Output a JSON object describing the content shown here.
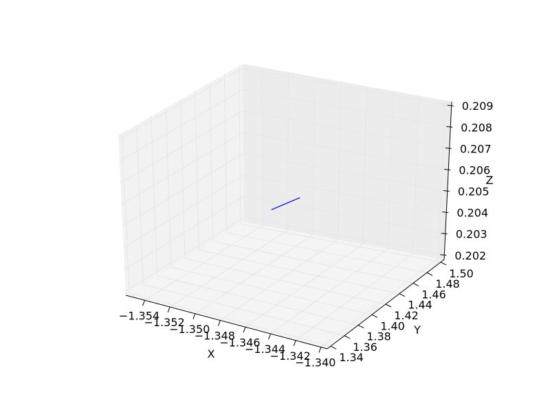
{
  "chart_data": {
    "type": "line",
    "projection": "3d",
    "grid": true,
    "colors": {
      "series": "#0000ff",
      "pane_back": "#ececec",
      "pane_side": "#f2f2f2",
      "pane_floor": "#f4f4f4",
      "grid": "#e6e6e6"
    },
    "xlabel": "X",
    "ylabel": "Y",
    "zlabel": "Z",
    "xlim": [
      -1.3555,
      -1.3395
    ],
    "ylim": [
      1.335,
      1.505
    ],
    "zlim": [
      0.2018,
      0.2092
    ],
    "xticks": [
      -1.354,
      -1.352,
      -1.35,
      -1.348,
      -1.346,
      -1.344,
      -1.342,
      -1.34
    ],
    "xtick_labels": [
      "−1.354",
      "−1.352",
      "−1.350",
      "−1.348",
      "−1.346",
      "−1.344",
      "−1.342",
      "−1.340"
    ],
    "yticks": [
      1.34,
      1.36,
      1.38,
      1.4,
      1.42,
      1.44,
      1.46,
      1.48,
      1.5
    ],
    "ytick_labels": [
      "1.34",
      "1.36",
      "1.38",
      "1.40",
      "1.42",
      "1.44",
      "1.46",
      "1.48",
      "1.50"
    ],
    "zticks": [
      0.202,
      0.203,
      0.204,
      0.205,
      0.206,
      0.207,
      0.208,
      0.209
    ],
    "ztick_labels": [
      "0.202",
      "0.203",
      "0.204",
      "0.205",
      "0.206",
      "0.207",
      "0.208",
      "0.209"
    ],
    "series": [
      {
        "x": [
          -1.3485,
          -1.3465
        ],
        "y": [
          1.418,
          1.422
        ],
        "z": [
          0.2052,
          0.206
        ]
      }
    ]
  }
}
